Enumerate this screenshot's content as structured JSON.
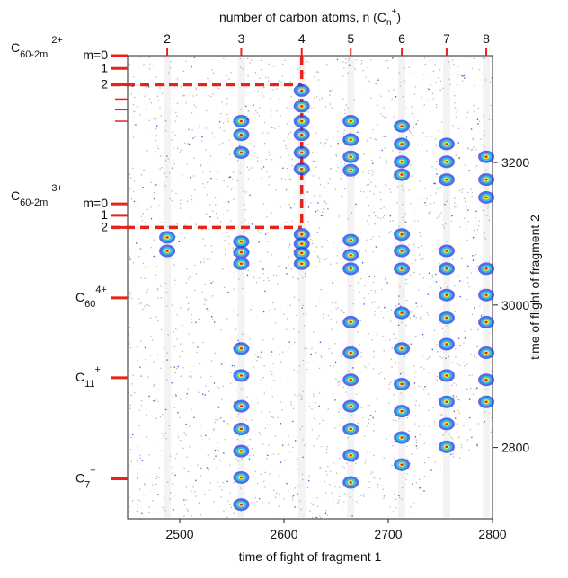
{
  "chart_data": {
    "type": "scatter",
    "xlabel": "time of fight of fragment 1",
    "ylabel": "time of flight of fragment 2",
    "x2label": {
      "text": "number of carbon atoms, n (C",
      "sub": "n",
      "sup": "+",
      "end": ")"
    },
    "xlim": [
      2450,
      2800
    ],
    "xticks": [
      2500,
      2600,
      2700,
      2800
    ],
    "x2ticks": [
      {
        "value": 2488,
        "label": "2"
      },
      {
        "value": 2559,
        "label": "3"
      },
      {
        "value": 2617,
        "label": "4"
      },
      {
        "value": 2664,
        "label": "5"
      },
      {
        "value": 2713,
        "label": "6"
      },
      {
        "value": 2756,
        "label": "7"
      },
      {
        "value": 2794,
        "label": "8"
      }
    ],
    "ylim": [
      2700,
      3350
    ],
    "yticks": [
      2800,
      3000,
      3200
    ],
    "ion_groups": [
      {
        "base": "C",
        "sub": "60-2m",
        "sup": "2+",
        "ticks": [
          {
            "value": 3350,
            "label": "m=0"
          },
          {
            "value": 3332,
            "label": "1"
          },
          {
            "value": 3309,
            "label": "2"
          }
        ]
      },
      {
        "base": "C",
        "sub": "60-2m",
        "sup": "3+",
        "ticks": [
          {
            "value": 3142,
            "label": "m=0"
          },
          {
            "value": 3126,
            "label": "1"
          },
          {
            "value": 3109,
            "label": "2"
          }
        ]
      },
      {
        "base": "C",
        "sub": "60",
        "sup": "4+",
        "ticks": [
          3010
        ]
      },
      {
        "base": "C",
        "sub": "11",
        "sup": "+",
        "ticks": [
          2898
        ]
      },
      {
        "base": "C",
        "sub": "7",
        "sup": "+",
        "ticks": [
          2756
        ]
      }
    ],
    "minor_ticks": [
      3289,
      3274,
      3258
    ],
    "guide_color": "#e8241a",
    "colormap": [
      "#1f3de0",
      "#2ec4e8",
      "#f5e03a",
      "#e3261c"
    ],
    "series": [
      {
        "name": "coincidence islands",
        "x": [
          2617,
          2617,
          2617,
          2617,
          2617,
          2617,
          2617,
          2617,
          2617,
          2617,
          2559,
          2559,
          2559,
          2559,
          2559,
          2559,
          2559,
          2559,
          2559,
          2559,
          2559,
          2559,
          2559,
          2664,
          2664,
          2664,
          2664,
          2664,
          2664,
          2664,
          2664,
          2664,
          2664,
          2664,
          2664,
          2664,
          2664,
          2713,
          2713,
          2713,
          2713,
          2713,
          2713,
          2713,
          2713,
          2713,
          2713,
          2713,
          2713,
          2713,
          2756,
          2756,
          2756,
          2756,
          2756,
          2756,
          2756,
          2756,
          2756,
          2756,
          2756,
          2756,
          2794,
          2794,
          2794,
          2794,
          2794,
          2794,
          2794,
          2794,
          2794,
          2488,
          2488
        ],
        "values": [
          3301,
          3279,
          3258,
          3239,
          3214,
          3191,
          3099,
          3086,
          3073,
          3058,
          3258,
          3239,
          3214,
          3089,
          3074,
          3058,
          2939,
          2901,
          2858,
          2826,
          2795,
          2758,
          2720,
          3258,
          3232,
          3208,
          3189,
          3091,
          3070,
          3051,
          2976,
          2933,
          2895,
          2858,
          2826,
          2789,
          2751,
          3251,
          3226,
          3201,
          3183,
          3099,
          3076,
          3051,
          2989,
          2939,
          2889,
          2851,
          2814,
          2776,
          3226,
          3201,
          3176,
          3076,
          3051,
          3014,
          2982,
          2945,
          2901,
          2864,
          2833,
          2801,
          3208,
          3176,
          3151,
          3051,
          3014,
          2976,
          2933,
          2895,
          2864,
          3095,
          3076
        ]
      }
    ]
  }
}
